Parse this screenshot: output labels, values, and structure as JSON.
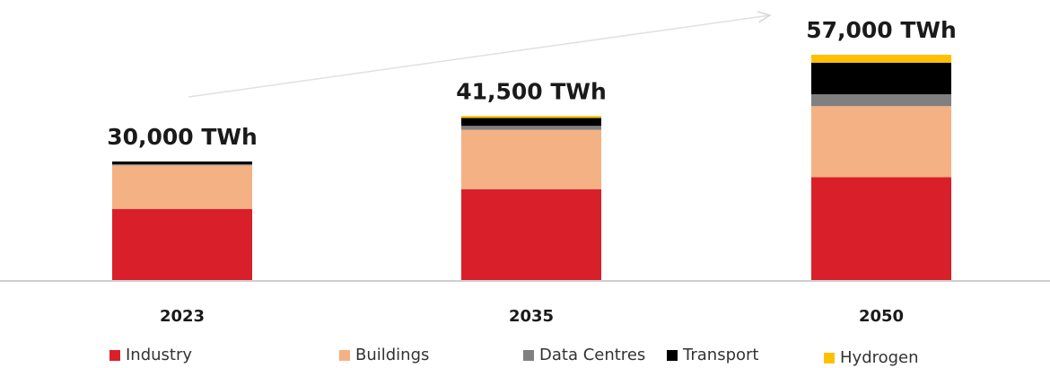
{
  "chart_data": {
    "type": "stacked_bar",
    "categories": [
      "2023",
      "2035",
      "2050"
    ],
    "totals": [
      30000,
      41500,
      57000
    ],
    "total_labels": [
      "30,000 TWh",
      "41,500 TWh",
      "57,000 TWh"
    ],
    "series": [
      {
        "name": "Industry",
        "color": "#d9202a",
        "values": [
          18000,
          23000,
          26000
        ]
      },
      {
        "name": "Buildings",
        "color": "#f4b183",
        "values": [
          11000,
          15000,
          18000
        ]
      },
      {
        "name": "Data Centres",
        "color": "#808080",
        "values": [
          300,
          1000,
          3000
        ]
      },
      {
        "name": "Transport",
        "color": "#000000",
        "values": [
          700,
          2000,
          8000
        ]
      },
      {
        "name": "Hydrogen",
        "color": "#ffc000",
        "values": [
          0,
          500,
          2000
        ]
      }
    ]
  }
}
